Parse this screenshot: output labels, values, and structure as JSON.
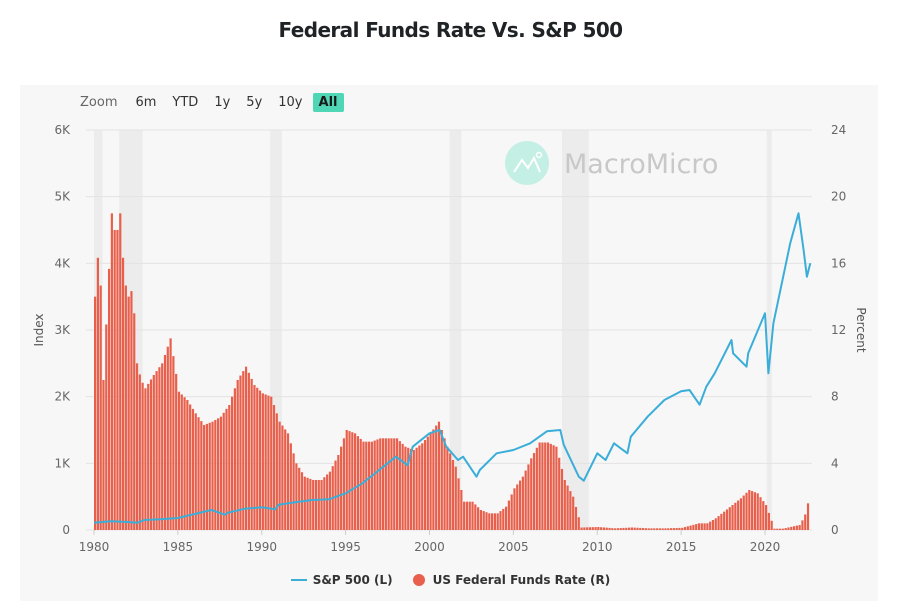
{
  "title": "Federal Funds Rate Vs. S&P 500",
  "range_selector": {
    "label": "Zoom",
    "buttons": [
      "6m",
      "YTD",
      "1y",
      "5y",
      "10y",
      "All"
    ],
    "active": "All"
  },
  "watermark": "MacroMicro",
  "colors": {
    "sp500": "#3aaed8",
    "fedfunds": "#e8604c",
    "recession": "#ececec",
    "grid": "#e3e3e3",
    "active_button": "#4fd6b5",
    "logo": "#c4efe4"
  },
  "legend": [
    {
      "label": "S&P 500 (L)",
      "type": "line"
    },
    {
      "label": "US Federal Funds Rate (R)",
      "type": "dot"
    }
  ],
  "chart_data": {
    "type": "line+bar",
    "title": "Federal Funds Rate Vs. S&P 500",
    "xlabel": "",
    "x_ticks": [
      "1980",
      "1985",
      "1990",
      "1995",
      "2000",
      "2005",
      "2010",
      "2015",
      "2020"
    ],
    "xlim": [
      1980,
      2022.7
    ],
    "left_axis": {
      "label": "Index",
      "ylim": [
        0,
        6000
      ],
      "ticks": [
        "0",
        "1K",
        "2K",
        "3K",
        "4K",
        "5K",
        "6K"
      ],
      "tick_values": [
        0,
        1000,
        2000,
        3000,
        4000,
        5000,
        6000
      ]
    },
    "right_axis": {
      "label": "Percent",
      "ylim": [
        0,
        24
      ],
      "ticks": [
        "0",
        "4",
        "8",
        "12",
        "16",
        "20",
        "24"
      ],
      "tick_values": [
        0,
        4,
        8,
        12,
        16,
        20,
        24
      ]
    },
    "grid": true,
    "legend_position": "bottom-center",
    "recessions": [
      [
        1980.0,
        1980.5
      ],
      [
        1981.5,
        1982.9
      ],
      [
        1990.5,
        1991.2
      ],
      [
        2001.2,
        2001.9
      ],
      [
        2007.9,
        2009.5
      ],
      [
        2020.1,
        2020.4
      ]
    ],
    "series": [
      {
        "name": "S&P 500 (L)",
        "axis": "left",
        "type": "line",
        "x": [
          1980,
          1981,
          1982,
          1982.6,
          1983,
          1984,
          1985,
          1986,
          1987,
          1987.8,
          1988,
          1989,
          1990,
          1990.8,
          1991,
          1992,
          1993,
          1994,
          1995,
          1996,
          1997,
          1998,
          1998.7,
          1999,
          2000,
          2000.6,
          2001,
          2001.7,
          2002,
          2002.8,
          2003,
          2004,
          2005,
          2006,
          2007,
          2007.8,
          2008,
          2008.9,
          2009.2,
          2010,
          2010.5,
          2011,
          2011.8,
          2012,
          2013,
          2014,
          2015,
          2015.5,
          2016.1,
          2016.5,
          2017,
          2018,
          2018.1,
          2018.9,
          2019,
          2019.5,
          2020,
          2020.2,
          2020.5,
          2021,
          2021.5,
          2022,
          2022.3,
          2022.5,
          2022.7
        ],
        "values": [
          108,
          130,
          120,
          110,
          150,
          160,
          180,
          240,
          300,
          230,
          260,
          320,
          340,
          310,
          380,
          415,
          450,
          460,
          550,
          700,
          900,
          1100,
          970,
          1250,
          1450,
          1500,
          1250,
          1050,
          1100,
          800,
          900,
          1150,
          1200,
          1300,
          1480,
          1500,
          1280,
          800,
          740,
          1150,
          1050,
          1300,
          1150,
          1400,
          1700,
          1950,
          2080,
          2100,
          1880,
          2150,
          2350,
          2850,
          2650,
          2450,
          2650,
          2950,
          3250,
          2350,
          3100,
          3700,
          4300,
          4750,
          4200,
          3800,
          4000
        ]
      },
      {
        "name": "US Federal Funds Rate (R)",
        "axis": "right",
        "type": "bar",
        "x": [
          1980,
          1980.25,
          1980.5,
          1980.75,
          1981,
          1981.25,
          1981.5,
          1981.75,
          1982,
          1982.25,
          1982.5,
          1982.75,
          1983,
          1983.5,
          1984,
          1984.5,
          1985,
          1985.5,
          1986,
          1986.5,
          1987,
          1987.5,
          1988,
          1988.5,
          1989,
          1989.5,
          1990,
          1990.5,
          1991,
          1991.5,
          1992,
          1992.5,
          1993,
          1993.5,
          1994,
          1994.5,
          1995,
          1995.5,
          1996,
          1996.5,
          1997,
          1997.5,
          1998,
          1998.5,
          1999,
          1999.5,
          2000,
          2000.5,
          2001,
          2001.5,
          2002,
          2002.5,
          2003,
          2003.5,
          2004,
          2004.5,
          2005,
          2005.5,
          2006,
          2006.5,
          2007,
          2007.5,
          2008,
          2008.5,
          2009,
          2010,
          2011,
          2012,
          2013,
          2014,
          2015,
          2016,
          2016.5,
          2017,
          2017.5,
          2018,
          2018.5,
          2019,
          2019.5,
          2020,
          2020.5,
          2021,
          2022,
          2022.3,
          2022.5
        ],
        "values": [
          14,
          17.5,
          9,
          14,
          19,
          17.5,
          19,
          15,
          14,
          14.5,
          10,
          9,
          8.5,
          9.3,
          10,
          11.5,
          8.3,
          7.8,
          7,
          6.3,
          6.5,
          6.8,
          7.5,
          9,
          9.8,
          8.7,
          8.2,
          8,
          6.5,
          5.8,
          4,
          3.2,
          3,
          3,
          3.5,
          4.5,
          6,
          5.8,
          5.3,
          5.3,
          5.5,
          5.5,
          5.5,
          5,
          4.8,
          5.2,
          5.8,
          6.5,
          5,
          3.8,
          1.7,
          1.7,
          1.2,
          1,
          1,
          1.4,
          2.5,
          3.2,
          4.3,
          5.25,
          5.25,
          5,
          3,
          2,
          0.15,
          0.18,
          0.1,
          0.15,
          0.1,
          0.1,
          0.13,
          0.4,
          0.4,
          0.7,
          1.1,
          1.5,
          1.9,
          2.4,
          2.2,
          1.5,
          0.08,
          0.08,
          0.3,
          0.8,
          1.6
        ]
      }
    ]
  }
}
